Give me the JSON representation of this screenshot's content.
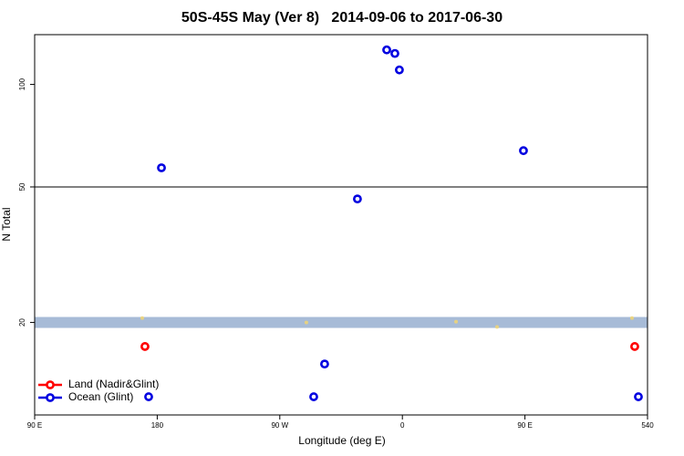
{
  "chart_data": {
    "type": "scatter",
    "title": "50S-45S May (Ver 8)   2014-09-06 to 2017-06-30",
    "xlabel": "Longitude (deg E)",
    "ylabel": "N Total",
    "xlim": [
      90,
      540
    ],
    "ylim": [
      10.7,
      140
    ],
    "ylog": true,
    "xticks": [
      {
        "value": 90,
        "label": "90 E"
      },
      180,
      {
        "value": 270,
        "label": "90 W"
      },
      {
        "value": 360,
        "label": "0"
      },
      {
        "value": 450,
        "label": "90 E"
      },
      540
    ],
    "yticks": [
      20,
      50,
      100
    ],
    "hlines": [
      50
    ],
    "band": {
      "value": 20,
      "color": "#a7bbd7"
    },
    "legend": "bottom-left",
    "series": [
      {
        "name": "Land (Nadir&Glint)",
        "color": "#ff0000",
        "x": [
          171.0,
          530.6
        ],
        "values": [
          17.0,
          17.0
        ]
      },
      {
        "name": "Ocean (Glint)",
        "color": "#0000e0",
        "x": [
          348.5,
          354.5,
          357.8,
          448.9,
          183.1,
          327.0,
          302.9,
          173.7,
          294.9,
          533.3
        ],
        "values": [
          126.3,
          123.3,
          110.3,
          63.9,
          56.9,
          46.1,
          15.1,
          12.1,
          12.1,
          12.1
        ]
      },
      {
        "color": "#f5d76e",
        "x": [
          169.0,
          289.5,
          528.6,
          399.4,
          429.5
        ],
        "values": [
          20.6,
          20.0,
          20.6,
          20.1,
          19.4
        ]
      }
    ]
  }
}
